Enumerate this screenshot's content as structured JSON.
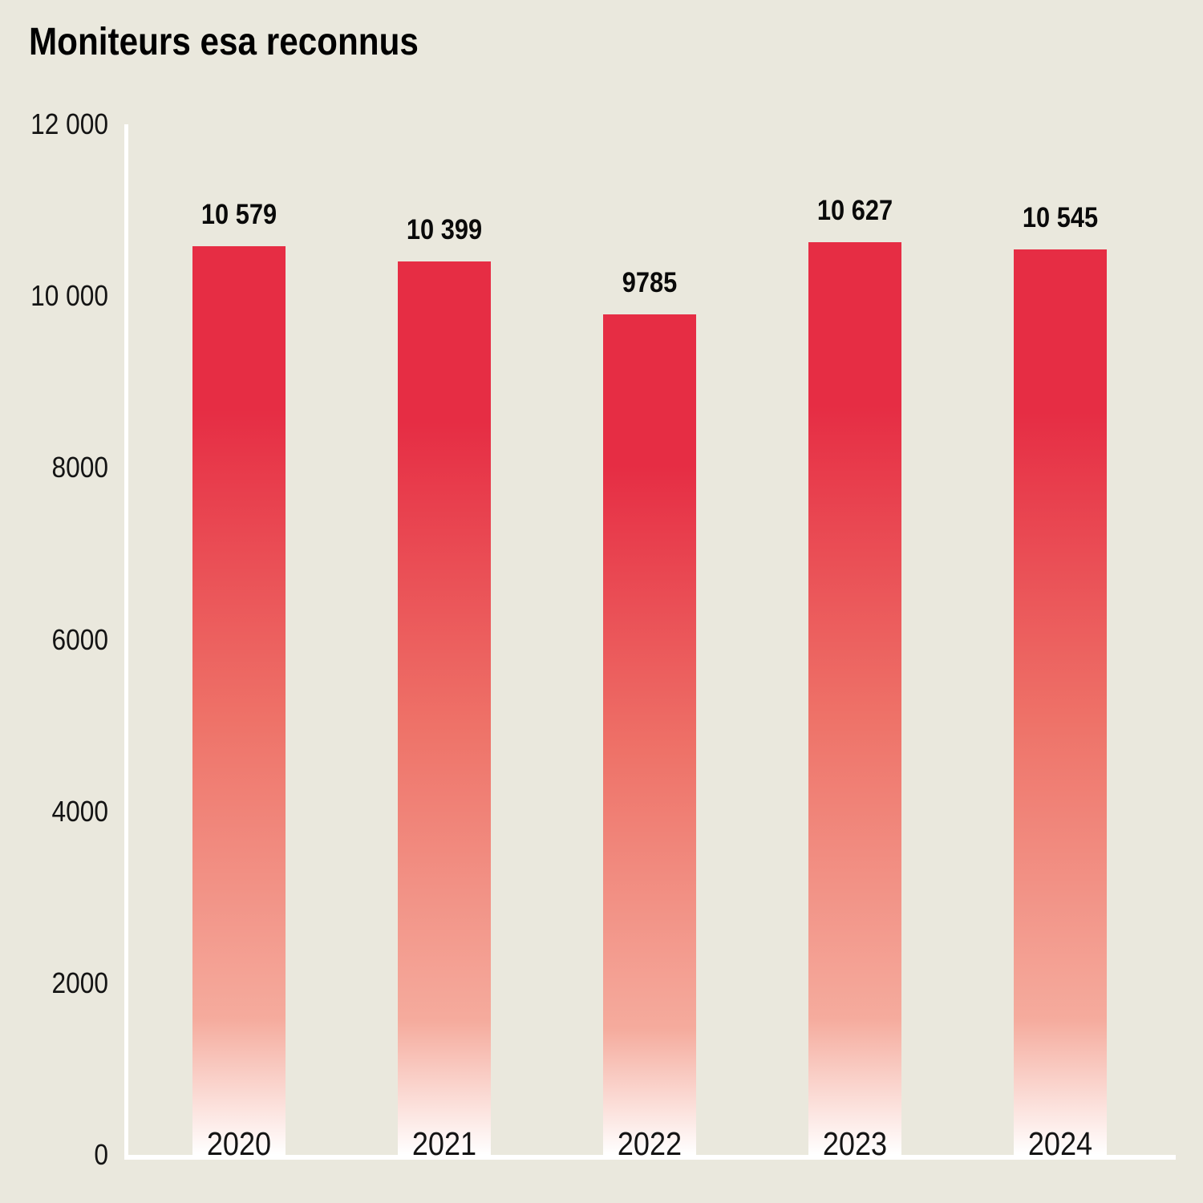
{
  "chart_data": {
    "type": "bar",
    "title": "Moniteurs esa reconnus",
    "categories": [
      "2020",
      "2021",
      "2022",
      "2023",
      "2024"
    ],
    "values": [
      10579,
      10399,
      9785,
      10627,
      10545
    ],
    "value_labels": [
      "10 579",
      "10 399",
      "9785",
      "10 627",
      "10 545"
    ],
    "yticks": [
      {
        "value": 12000,
        "label": "12 000"
      },
      {
        "value": 10000,
        "label": "10 000"
      },
      {
        "value": 8000,
        "label": "8000"
      },
      {
        "value": 6000,
        "label": "6000"
      },
      {
        "value": 4000,
        "label": "4000"
      },
      {
        "value": 2000,
        "label": "2000"
      },
      {
        "value": 0,
        "label": "0"
      }
    ],
    "ylim": [
      0,
      12000
    ],
    "xlabel": "",
    "ylabel": "",
    "legend": null,
    "grid": false,
    "colors": {
      "background": "#eae8dd",
      "bar_top": "#e62d44",
      "bar_mid": "#ee7268",
      "bar_low": "#f5ab9d",
      "bar_bottom": "#ffffff",
      "axis": "#ffffff",
      "title_text": "#000000",
      "label_text": "#141414"
    }
  }
}
